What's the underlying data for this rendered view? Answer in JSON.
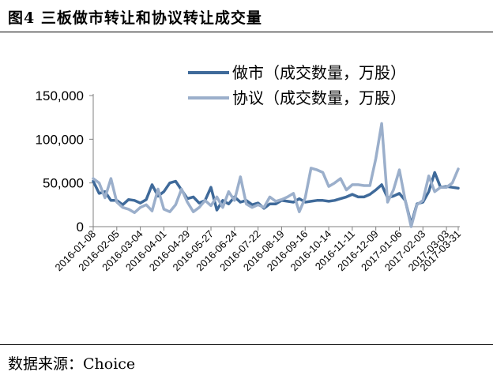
{
  "figure": {
    "title": "图4  三板做市转让和协议转让成交量",
    "source": "数据来源：Choice"
  },
  "colors": {
    "series1": "#3F6A9A",
    "series2": "#9BAFCB",
    "axis": "#808080"
  },
  "chart_data": {
    "type": "line",
    "title": "",
    "xlabel": "",
    "ylabel": "",
    "ylim": [
      0,
      150000
    ],
    "yticks": [
      0,
      50000,
      100000,
      150000
    ],
    "ytick_labels": [
      "0",
      "50,000",
      "100,000",
      "150,000"
    ],
    "grid": false,
    "legend_position": "top",
    "x_tick_labels": [
      "2016-01-08",
      "2016-02-05",
      "2016-03-04",
      "2016-04-01",
      "2016-04-29",
      "2016-05-27",
      "2016-06-24",
      "2016-07-22",
      "2016-08-19",
      "2016-09-16",
      "2016-10-14",
      "2016-11-11",
      "2016-12-09",
      "2017-01-06",
      "2017-02-03",
      "2017-03-03",
      "2017-03-31"
    ],
    "series": [
      {
        "name": "做市（成交数量，万股）",
        "values": [
          52000,
          38000,
          40000,
          30000,
          30000,
          25000,
          31000,
          30000,
          27000,
          31000,
          48000,
          35000,
          40000,
          50000,
          52000,
          42000,
          32000,
          34000,
          27000,
          30000,
          45000,
          19000,
          30000,
          26000,
          34000,
          28000,
          30000,
          25000,
          27000,
          21000,
          26000,
          26000,
          30000,
          29000,
          28000,
          32000,
          28000,
          29000,
          30000,
          30000,
          29000,
          30000,
          32000,
          34000,
          37000,
          34000,
          34000,
          37000,
          42000,
          48000,
          33000,
          35000,
          38000,
          30000,
          3000,
          26000,
          28000,
          40000,
          62000,
          45000,
          46000,
          45000,
          44000
        ]
      },
      {
        "name": "协议（成交数量，万股）",
        "values": [
          55000,
          50000,
          33000,
          55000,
          28000,
          22000,
          20000,
          16000,
          22000,
          25000,
          18000,
          43000,
          20000,
          17000,
          25000,
          43000,
          28000,
          17000,
          22000,
          30000,
          24000,
          34000,
          22000,
          40000,
          30000,
          57000,
          26000,
          22000,
          25000,
          22000,
          34000,
          29000,
          31000,
          34000,
          38000,
          17000,
          33000,
          67000,
          65000,
          62000,
          46000,
          50000,
          55000,
          42000,
          48000,
          48000,
          47000,
          47000,
          78000,
          118000,
          28000,
          42000,
          65000,
          30000,
          0,
          25000,
          30000,
          58000,
          40000,
          45000,
          45000,
          50000,
          66000
        ]
      }
    ]
  }
}
